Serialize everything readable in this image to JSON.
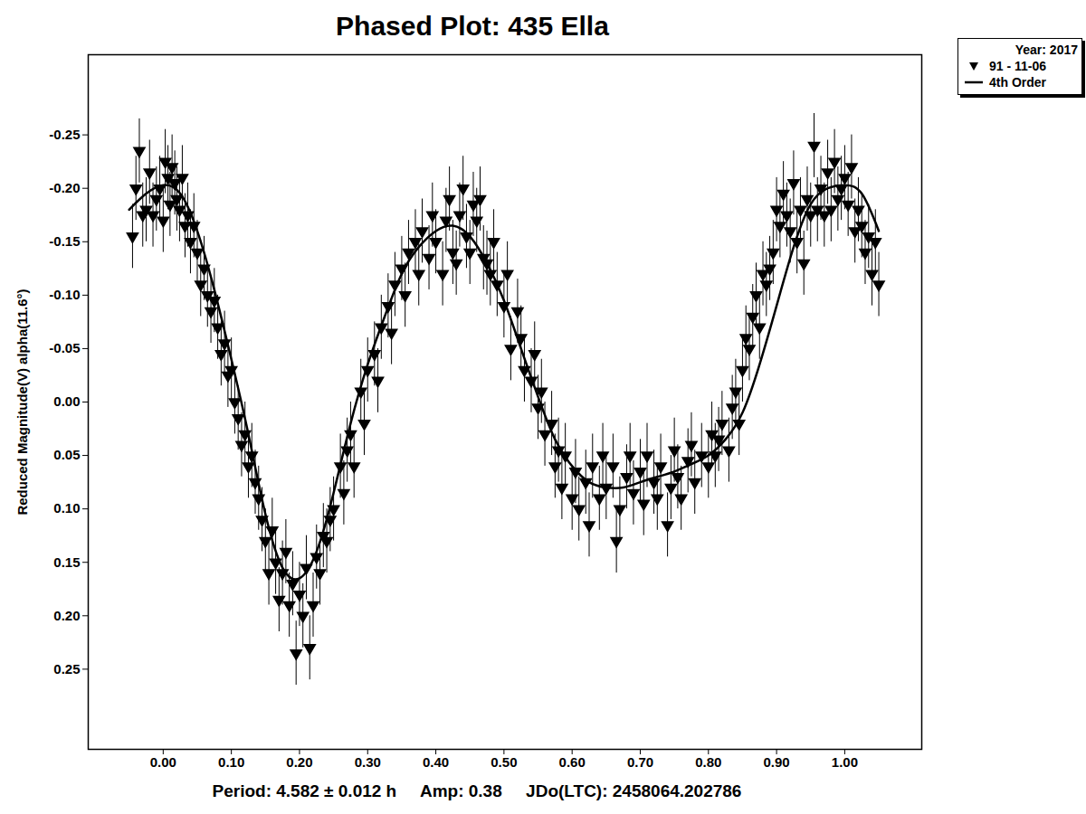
{
  "chart_data": {
    "type": "scatter",
    "title": "Phased Plot: 435 Ella",
    "caption": [
      "Period: 4.582 ± 0.012 h",
      "Amp: 0.38",
      "JDo(LTC): 2458064.202786"
    ],
    "y_label": "Reduced Magnitude(V) alpha(11.6°)",
    "legend_title": "Year: 2017",
    "legend": "top right",
    "grid": false,
    "xlim": [
      -0.11,
      1.113
    ],
    "ylim": [
      0.325,
      -0.325
    ],
    "xticks": [
      {
        "value": 0,
        "label": "0.00"
      },
      {
        "value": 0.1,
        "label": "0.10"
      },
      {
        "value": 0.2,
        "label": "0.20"
      },
      {
        "value": 0.3,
        "label": "0.30"
      },
      {
        "value": 0.4,
        "label": "0.40"
      },
      {
        "value": 0.5,
        "label": "0.50"
      },
      {
        "value": 0.6,
        "label": "0.60"
      },
      {
        "value": 0.7,
        "label": "0.70"
      },
      {
        "value": 0.8,
        "label": "0.80"
      },
      {
        "value": 0.9,
        "label": "0.90"
      },
      {
        "value": 1,
        "label": "1.00"
      }
    ],
    "yticks": [
      -0.25,
      {
        "value": -0.2,
        "label": "-0.20"
      },
      -0.15,
      {
        "value": -0.1,
        "label": "-0.10"
      },
      -0.05,
      {
        "value": 0,
        "label": "0.00"
      },
      0.05,
      {
        "value": 0.1,
        "label": "0.10"
      },
      0.15,
      {
        "value": 0.2,
        "label": "0.20"
      },
      0.25
    ],
    "series": [
      {
        "name": "91 - 11-06",
        "type": "scatter",
        "marker": "triangle-down",
        "color": "#000000",
        "x": [
          -0.045,
          -0.04,
          -0.035,
          -0.03,
          -0.025,
          -0.02,
          -0.015,
          -0.01,
          -0.005,
          0.0,
          0.003,
          0.007,
          0.01,
          0.013,
          0.017,
          0.02,
          0.024,
          0.028,
          0.032,
          0.036,
          0.04,
          0.045,
          0.05,
          0.055,
          0.06,
          0.065,
          0.07,
          0.075,
          0.08,
          0.085,
          0.09,
          0.095,
          0.1,
          0.105,
          0.11,
          0.115,
          0.12,
          0.125,
          0.13,
          0.135,
          0.14,
          0.145,
          0.15,
          0.155,
          0.16,
          0.165,
          0.17,
          0.175,
          0.18,
          0.185,
          0.19,
          0.195,
          0.2,
          0.205,
          0.21,
          0.215,
          0.22,
          0.225,
          0.23,
          0.235,
          0.24,
          0.245,
          0.25,
          0.26,
          0.265,
          0.27,
          0.275,
          0.28,
          0.29,
          0.295,
          0.3,
          0.31,
          0.315,
          0.32,
          0.33,
          0.335,
          0.34,
          0.35,
          0.355,
          0.36,
          0.37,
          0.375,
          0.38,
          0.39,
          0.395,
          0.4,
          0.41,
          0.415,
          0.42,
          0.425,
          0.43,
          0.435,
          0.44,
          0.445,
          0.45,
          0.455,
          0.46,
          0.465,
          0.47,
          0.475,
          0.48,
          0.485,
          0.49,
          0.5,
          0.505,
          0.51,
          0.52,
          0.525,
          0.53,
          0.54,
          0.545,
          0.55,
          0.555,
          0.56,
          0.57,
          0.575,
          0.58,
          0.585,
          0.59,
          0.6,
          0.605,
          0.61,
          0.62,
          0.625,
          0.63,
          0.64,
          0.645,
          0.65,
          0.66,
          0.665,
          0.67,
          0.68,
          0.685,
          0.69,
          0.7,
          0.705,
          0.71,
          0.72,
          0.725,
          0.73,
          0.74,
          0.745,
          0.75,
          0.755,
          0.76,
          0.77,
          0.775,
          0.78,
          0.79,
          0.8,
          0.805,
          0.81,
          0.815,
          0.82,
          0.83,
          0.835,
          0.84,
          0.845,
          0.85,
          0.855,
          0.86,
          0.865,
          0.87,
          0.875,
          0.88,
          0.885,
          0.89,
          0.895,
          0.9,
          0.905,
          0.91,
          0.915,
          0.92,
          0.925,
          0.93,
          0.935,
          0.94,
          0.945,
          0.95,
          0.955,
          0.96,
          0.965,
          0.97,
          0.975,
          0.98,
          0.985,
          0.99,
          0.995,
          1.0,
          1.005,
          1.01,
          1.015,
          1.02,
          1.025,
          1.03,
          1.035,
          1.04,
          1.045,
          1.05
        ],
        "values": [
          -0.155,
          -0.2,
          -0.235,
          -0.175,
          -0.18,
          -0.215,
          -0.175,
          -0.19,
          -0.2,
          -0.17,
          -0.225,
          -0.21,
          -0.185,
          -0.22,
          -0.205,
          -0.19,
          -0.18,
          -0.21,
          -0.165,
          -0.175,
          -0.15,
          -0.165,
          -0.14,
          -0.11,
          -0.125,
          -0.1,
          -0.085,
          -0.095,
          -0.07,
          -0.045,
          -0.055,
          -0.025,
          -0.03,
          0.0,
          0.015,
          0.04,
          0.03,
          0.06,
          0.05,
          0.075,
          0.09,
          0.11,
          0.13,
          0.16,
          0.12,
          0.15,
          0.185,
          0.16,
          0.14,
          0.19,
          0.17,
          0.235,
          0.18,
          0.2,
          0.155,
          0.23,
          0.19,
          0.145,
          0.16,
          0.125,
          0.13,
          0.11,
          0.1,
          0.06,
          0.085,
          0.045,
          0.03,
          0.06,
          -0.01,
          0.02,
          -0.03,
          -0.045,
          -0.02,
          -0.07,
          -0.09,
          -0.065,
          -0.11,
          -0.125,
          -0.1,
          -0.14,
          -0.15,
          -0.12,
          -0.16,
          -0.135,
          -0.175,
          -0.15,
          -0.12,
          -0.17,
          -0.19,
          -0.14,
          -0.13,
          -0.175,
          -0.2,
          -0.155,
          -0.14,
          -0.185,
          -0.17,
          -0.19,
          -0.135,
          -0.13,
          -0.12,
          -0.15,
          -0.11,
          -0.09,
          -0.12,
          -0.05,
          -0.085,
          -0.06,
          -0.03,
          -0.02,
          -0.045,
          0.005,
          -0.01,
          0.03,
          0.02,
          0.06,
          0.045,
          0.08,
          0.05,
          0.09,
          0.065,
          0.1,
          0.075,
          0.115,
          0.06,
          0.09,
          0.05,
          0.08,
          0.06,
          0.13,
          0.1,
          0.07,
          0.05,
          0.085,
          0.065,
          0.095,
          0.05,
          0.075,
          0.09,
          0.06,
          0.115,
          0.08,
          0.045,
          0.07,
          0.09,
          0.055,
          0.04,
          0.075,
          0.05,
          0.06,
          0.03,
          0.05,
          0.035,
          0.02,
          0.045,
          0.005,
          -0.01,
          0.02,
          -0.03,
          -0.06,
          -0.05,
          -0.08,
          -0.1,
          -0.07,
          -0.12,
          -0.11,
          -0.125,
          -0.14,
          -0.18,
          -0.165,
          -0.195,
          -0.175,
          -0.16,
          -0.205,
          -0.15,
          -0.18,
          -0.13,
          -0.19,
          -0.175,
          -0.24,
          -0.18,
          -0.2,
          -0.175,
          -0.215,
          -0.18,
          -0.225,
          -0.19,
          -0.2,
          -0.21,
          -0.185,
          -0.22,
          -0.16,
          -0.18,
          -0.165,
          -0.14,
          -0.155,
          -0.12,
          -0.15,
          -0.11
        ],
        "errors": [
          0.03,
          0.03,
          0.03,
          0.03,
          0.03,
          0.03,
          0.03,
          0.03,
          0.03,
          0.03,
          0.03,
          0.03,
          0.03,
          0.03,
          0.03,
          0.03,
          0.03,
          0.03,
          0.03,
          0.03,
          0.03,
          0.03,
          0.03,
          0.03,
          0.03,
          0.03,
          0.03,
          0.03,
          0.03,
          0.03,
          0.03,
          0.03,
          0.03,
          0.03,
          0.03,
          0.03,
          0.03,
          0.03,
          0.03,
          0.03,
          0.03,
          0.03,
          0.03,
          0.03,
          0.03,
          0.03,
          0.03,
          0.03,
          0.03,
          0.03,
          0.03,
          0.03,
          0.03,
          0.03,
          0.03,
          0.03,
          0.03,
          0.03,
          0.03,
          0.03,
          0.03,
          0.03,
          0.03,
          0.03,
          0.03,
          0.03,
          0.03,
          0.03,
          0.03,
          0.03,
          0.03,
          0.03,
          0.03,
          0.03,
          0.03,
          0.03,
          0.03,
          0.03,
          0.03,
          0.03,
          0.03,
          0.03,
          0.03,
          0.03,
          0.03,
          0.03,
          0.03,
          0.03,
          0.03,
          0.03,
          0.03,
          0.03,
          0.03,
          0.03,
          0.03,
          0.03,
          0.03,
          0.03,
          0.03,
          0.03,
          0.03,
          0.03,
          0.03,
          0.03,
          0.03,
          0.03,
          0.03,
          0.03,
          0.03,
          0.03,
          0.03,
          0.03,
          0.03,
          0.03,
          0.03,
          0.03,
          0.03,
          0.03,
          0.03,
          0.03,
          0.03,
          0.03,
          0.03,
          0.03,
          0.03,
          0.03,
          0.03,
          0.03,
          0.03,
          0.03,
          0.03,
          0.03,
          0.03,
          0.03,
          0.03,
          0.03,
          0.03,
          0.03,
          0.03,
          0.03,
          0.03,
          0.03,
          0.03,
          0.03,
          0.03,
          0.03,
          0.03,
          0.03,
          0.03,
          0.03,
          0.03,
          0.03,
          0.03,
          0.03,
          0.03,
          0.03,
          0.03,
          0.03,
          0.03,
          0.03,
          0.03,
          0.03,
          0.03,
          0.03,
          0.03,
          0.03,
          0.03,
          0.03,
          0.03,
          0.03,
          0.03,
          0.03,
          0.03,
          0.03,
          0.03,
          0.03,
          0.03,
          0.03,
          0.03,
          0.03,
          0.03,
          0.03,
          0.03,
          0.03,
          0.03,
          0.03,
          0.03,
          0.03,
          0.03,
          0.03,
          0.03,
          0.03,
          0.03,
          0.03,
          0.03,
          0.03,
          0.03,
          0.03,
          0.03
        ]
      },
      {
        "name": "4th Order",
        "type": "line",
        "line_style": "solid",
        "color": "#000000",
        "x": [
          -0.05,
          -0.025,
          0,
          0.025,
          0.05,
          0.075,
          0.1,
          0.125,
          0.15,
          0.175,
          0.2,
          0.225,
          0.25,
          0.275,
          0.3,
          0.325,
          0.35,
          0.375,
          0.4,
          0.425,
          0.45,
          0.475,
          0.5,
          0.525,
          0.55,
          0.575,
          0.6,
          0.625,
          0.65,
          0.675,
          0.7,
          0.725,
          0.75,
          0.775,
          0.8,
          0.825,
          0.85,
          0.875,
          0.9,
          0.925,
          0.95,
          0.975,
          1.0,
          1.025,
          1.05
        ],
        "values": [
          -0.18,
          -0.195,
          -0.203,
          -0.195,
          -0.16,
          -0.105,
          -0.04,
          0.03,
          0.105,
          0.155,
          0.165,
          0.14,
          0.085,
          0.02,
          -0.035,
          -0.08,
          -0.12,
          -0.145,
          -0.16,
          -0.165,
          -0.155,
          -0.13,
          -0.095,
          -0.05,
          -0.005,
          0.035,
          0.06,
          0.075,
          0.08,
          0.08,
          0.075,
          0.07,
          0.065,
          0.058,
          0.05,
          0.035,
          0.01,
          -0.035,
          -0.09,
          -0.145,
          -0.185,
          -0.2,
          -0.203,
          -0.195,
          -0.16
        ]
      }
    ]
  }
}
